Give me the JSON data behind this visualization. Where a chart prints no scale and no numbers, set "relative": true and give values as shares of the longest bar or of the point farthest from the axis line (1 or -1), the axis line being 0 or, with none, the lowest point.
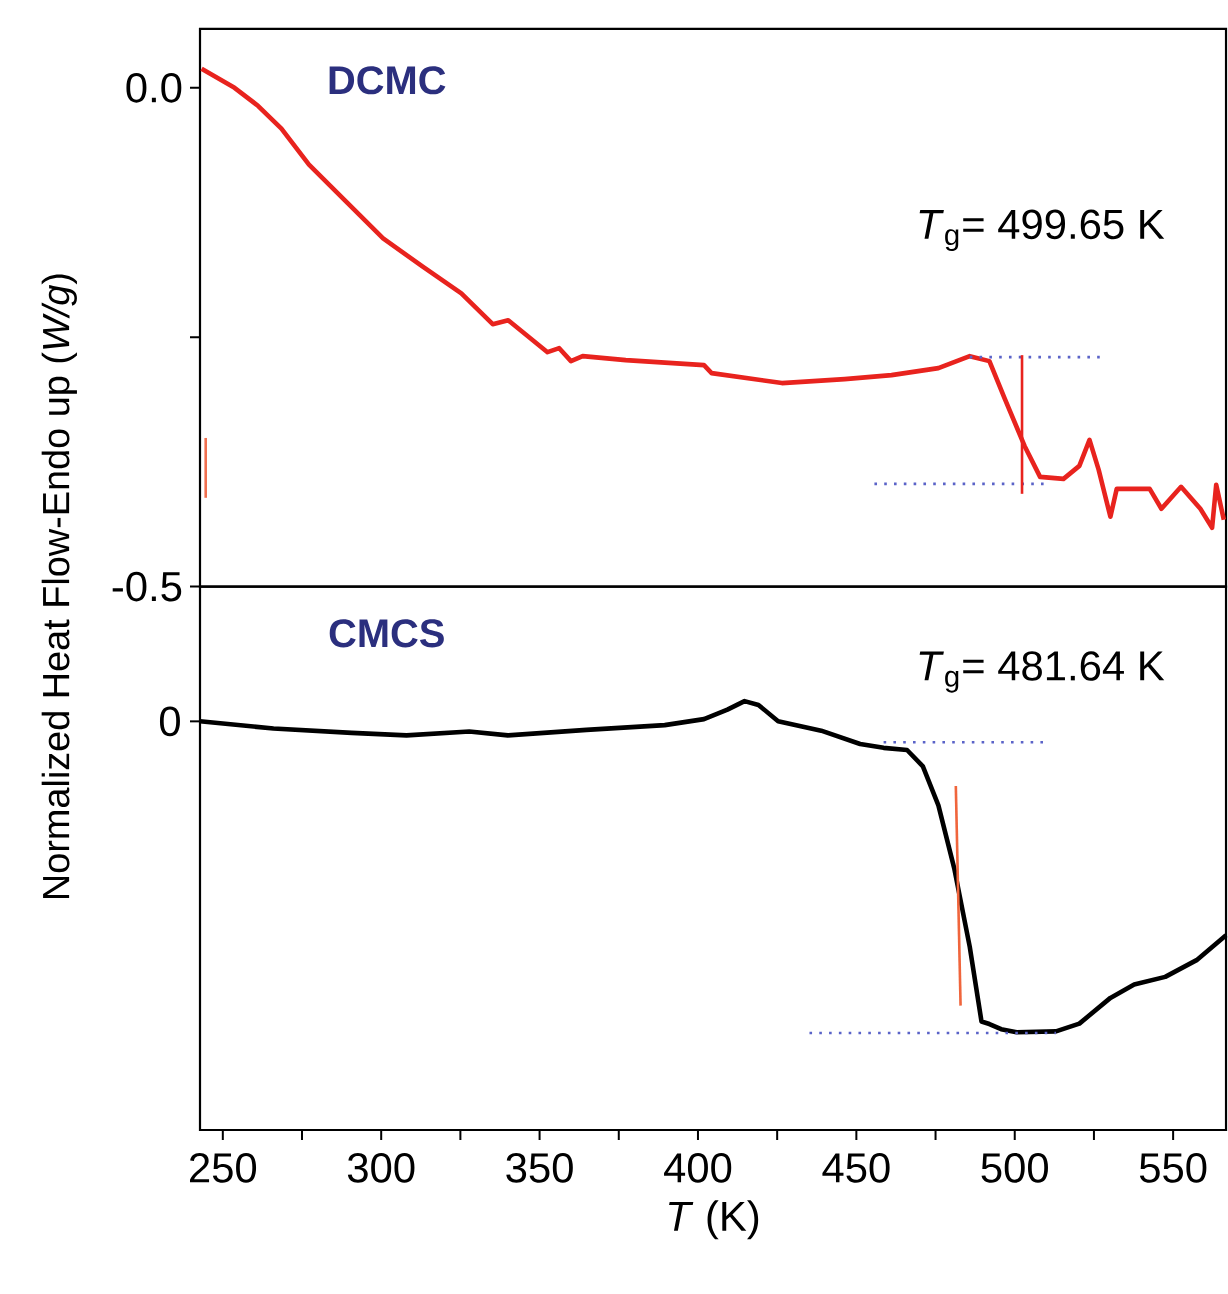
{
  "chart_data": [
    {
      "type": "line",
      "ylabel": "Normalized Heat Flow-Endo up (*W/g*)",
      "xlim": [
        242.8,
        566.7
      ],
      "ylim": [
        -0.5,
        0.059
      ],
      "yticks": [
        {
          "value": 0,
          "label": "0.0"
        },
        {
          "value": -0.25,
          "label": null
        },
        {
          "value": -0.5,
          "label": "-0.5"
        }
      ],
      "tick_labels": "y",
      "annotations": [
        "DCMC",
        "*T*$_{g}$= 499.65 K"
      ],
      "series": [
        {
          "color": "#e8231e",
          "x": [
            243.3,
            253.7,
            261.1,
            268.5,
            277.2,
            288.3,
            300.6,
            313,
            325.3,
            335.2,
            340.1,
            352.5,
            356.2,
            359.9,
            363.6,
            377.2,
            401.9,
            404.3,
            426.5,
            446.3,
            461.1,
            475.9,
            485.8,
            492,
            496.9,
            503.1,
            508,
            515.4,
            520.4,
            523.6,
            526.5,
            528.3,
            530.2,
            532.2,
            542.6,
            546.3,
            552.5,
            558.6,
            562.3,
            563.6,
            566
          ],
          "values": [
            0.019,
            0,
            -0.018,
            -0.041,
            -0.077,
            -0.112,
            -0.151,
            -0.179,
            -0.206,
            -0.237,
            -0.233,
            -0.265,
            -0.261,
            -0.274,
            -0.269,
            -0.273,
            -0.278,
            -0.286,
            -0.296,
            -0.292,
            -0.288,
            -0.281,
            -0.269,
            -0.274,
            -0.312,
            -0.359,
            -0.39,
            -0.392,
            -0.379,
            -0.353,
            -0.383,
            -0.406,
            -0.43,
            -0.402,
            -0.402,
            -0.422,
            -0.4,
            -0.422,
            -0.441,
            -0.398,
            -0.433
          ]
        },
        {
          "color": "#5a63c8",
          "line_style": "dotted",
          "x": [
            485.8,
            527.8
          ],
          "values": [
            -0.27,
            -0.27
          ]
        },
        {
          "color": "#5a63c8",
          "line_style": "dotted",
          "x": [
            455.7,
            510.5
          ],
          "values": [
            -0.397,
            -0.397
          ]
        },
        {
          "color": "#e8231e",
          "x": [
            502.3,
            502.3
          ],
          "values": [
            -0.268,
            -0.407
          ]
        },
        {
          "color": "#f07050",
          "x": [
            244.6,
            244.6
          ],
          "values": [
            -0.351,
            -0.411
          ]
        }
      ]
    },
    {
      "type": "line",
      "xlabel": "*T* (K)",
      "xlim": [
        242.8,
        566.7
      ],
      "relative": true,
      "tick_labels": "x",
      "xticks": [
        250,
        {
          "value": 275,
          "label": null
        },
        300,
        {
          "value": 325,
          "label": null
        },
        350,
        {
          "value": 375,
          "label": null
        },
        400,
        {
          "value": 425,
          "label": null
        },
        450,
        {
          "value": 475,
          "label": null
        },
        500,
        {
          "value": 525,
          "label": null
        },
        550
      ],
      "annotations": [
        "CMCS",
        "*T*$_{g}$= 481.64 K",
        "0"
      ],
      "series": [
        {
          "color": "#000000",
          "x": [
            242.8,
            266,
            290.7,
            308,
            327.8,
            340,
            364.8,
            389.5,
            401.9,
            409.3,
            414.7,
            419.1,
            425.3,
            438.9,
            451.2,
            458.6,
            466,
            471,
            475.9,
            480.9,
            485.8,
            489.5,
            492,
            495.7,
            500.6,
            513,
            520.4,
            530.2,
            537.7,
            547.5,
            557.4,
            566.7
          ],
          "values": [
            0.953,
            0.936,
            0.926,
            0.92,
            0.929,
            0.92,
            0.933,
            0.944,
            0.958,
            0.98,
            1,
            0.991,
            0.953,
            0.931,
            0.9,
            0.891,
            0.886,
            0.848,
            0.757,
            0.61,
            0.427,
            0.253,
            0.247,
            0.235,
            0.228,
            0.23,
            0.248,
            0.308,
            0.339,
            0.357,
            0.396,
            0.454
          ]
        },
        {
          "color": "#5a63c8",
          "line_style": "dotted",
          "x": [
            458.6,
            510.4
          ],
          "values": [
            0.904,
            0.904
          ]
        },
        {
          "color": "#5a63c8",
          "line_style": "dotted",
          "x": [
            435.2,
            513
          ],
          "values": [
            0.226,
            0.226
          ]
        },
        {
          "color": "#f0653c",
          "x": [
            481.4,
            482.9
          ],
          "values": [
            0.802,
            0.29
          ]
        }
      ]
    }
  ]
}
